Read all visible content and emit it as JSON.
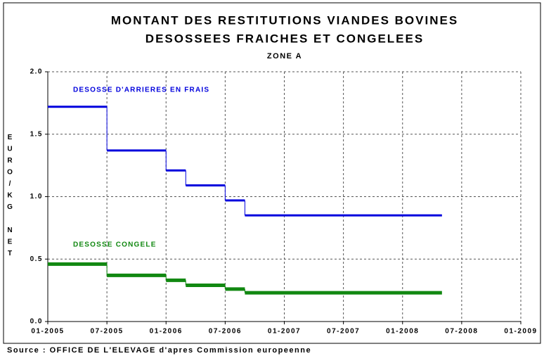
{
  "chart_data": {
    "type": "step",
    "title": [
      "MONTANT DES RESTITUTIONS VIANDES BOVINES",
      "DESOSSEES FRAICHES ET CONGELEES"
    ],
    "subtitle": "ZONE A",
    "y_label": "EURO/KG NET",
    "source": "Source : OFFICE DE L'ELEVAGE d'apres Commission europeenne",
    "x": [
      "2005-01",
      "2005-07",
      "2006-01",
      "2006-03",
      "2006-07",
      "2006-09",
      "2008-05"
    ],
    "series": [
      {
        "name": "DESOSSE D'ARRIERES EN FRAIS",
        "color": "#0000dd",
        "values": [
          1.72,
          1.37,
          1.21,
          1.09,
          0.97,
          0.85,
          0.85
        ]
      },
      {
        "name": "DESOSSE CONGELE",
        "color": "#118811",
        "values": [
          0.46,
          0.37,
          0.33,
          0.29,
          0.26,
          0.23,
          0.23
        ]
      }
    ],
    "xlim": [
      "2005-01",
      "2009-01"
    ],
    "xticks": [
      {
        "value": "2005-01",
        "label": "01-2005"
      },
      {
        "value": "2005-07",
        "label": "07-2005"
      },
      {
        "value": "2006-01",
        "label": "01-2006"
      },
      {
        "value": "2006-07",
        "label": "07-2006"
      },
      {
        "value": "2007-01",
        "label": "01-2007"
      },
      {
        "value": "2007-07",
        "label": "07-2007"
      },
      {
        "value": "2008-01",
        "label": "01-2008"
      },
      {
        "value": "2008-07",
        "label": "07-2008"
      },
      {
        "value": "2009-01",
        "label": "01-2009"
      }
    ],
    "ylim": [
      0,
      2
    ],
    "yticks": [
      {
        "value": 0,
        "label": "0.0"
      },
      0.5,
      {
        "value": 1,
        "label": "1.0"
      },
      1.5,
      {
        "value": 2,
        "label": "2.0"
      }
    ],
    "grid": true
  }
}
